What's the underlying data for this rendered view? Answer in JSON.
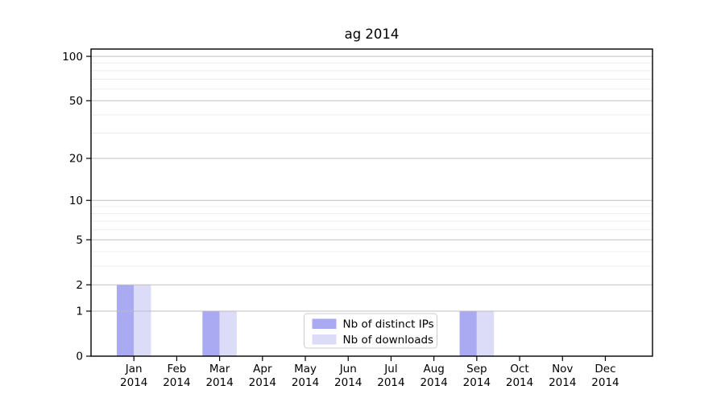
{
  "figure": {
    "background": "#ffffff"
  },
  "chart_data": {
    "type": "bar",
    "title": "ag 2014",
    "categories": [
      "Jan 2014",
      "Feb 2014",
      "Mar 2014",
      "Apr 2014",
      "May 2014",
      "Jun 2014",
      "Jul 2014",
      "Aug 2014",
      "Sep 2014",
      "Oct 2014",
      "Nov 2014",
      "Dec 2014"
    ],
    "series": [
      {
        "name": "Nb of distinct IPs",
        "color": "#aaaaf2",
        "values": [
          2,
          0,
          1,
          0,
          0,
          0,
          0,
          0,
          1,
          0,
          0,
          0
        ]
      },
      {
        "name": "Nb of downloads",
        "color": "#dcdcf8",
        "values": [
          2,
          0,
          1,
          0,
          0,
          0,
          0,
          0,
          1,
          0,
          0,
          0
        ]
      }
    ],
    "xlabel": "",
    "ylabel": "",
    "yscale": "log1p",
    "ylim": [
      0,
      112
    ],
    "yticks": [
      0,
      1,
      2,
      5,
      10,
      20,
      50,
      100
    ],
    "minor_yticks": [
      3,
      4,
      6,
      7,
      8,
      9,
      30,
      40,
      60,
      70,
      80,
      90
    ],
    "grid": true,
    "legend_position": "lower center",
    "colors": {
      "spine": "#000000",
      "major_grid": "#b8b8b8",
      "minor_grid": "#ececec",
      "legend_border": "#cccccc",
      "legend_background": "#ffffff",
      "text": "#000000"
    }
  }
}
